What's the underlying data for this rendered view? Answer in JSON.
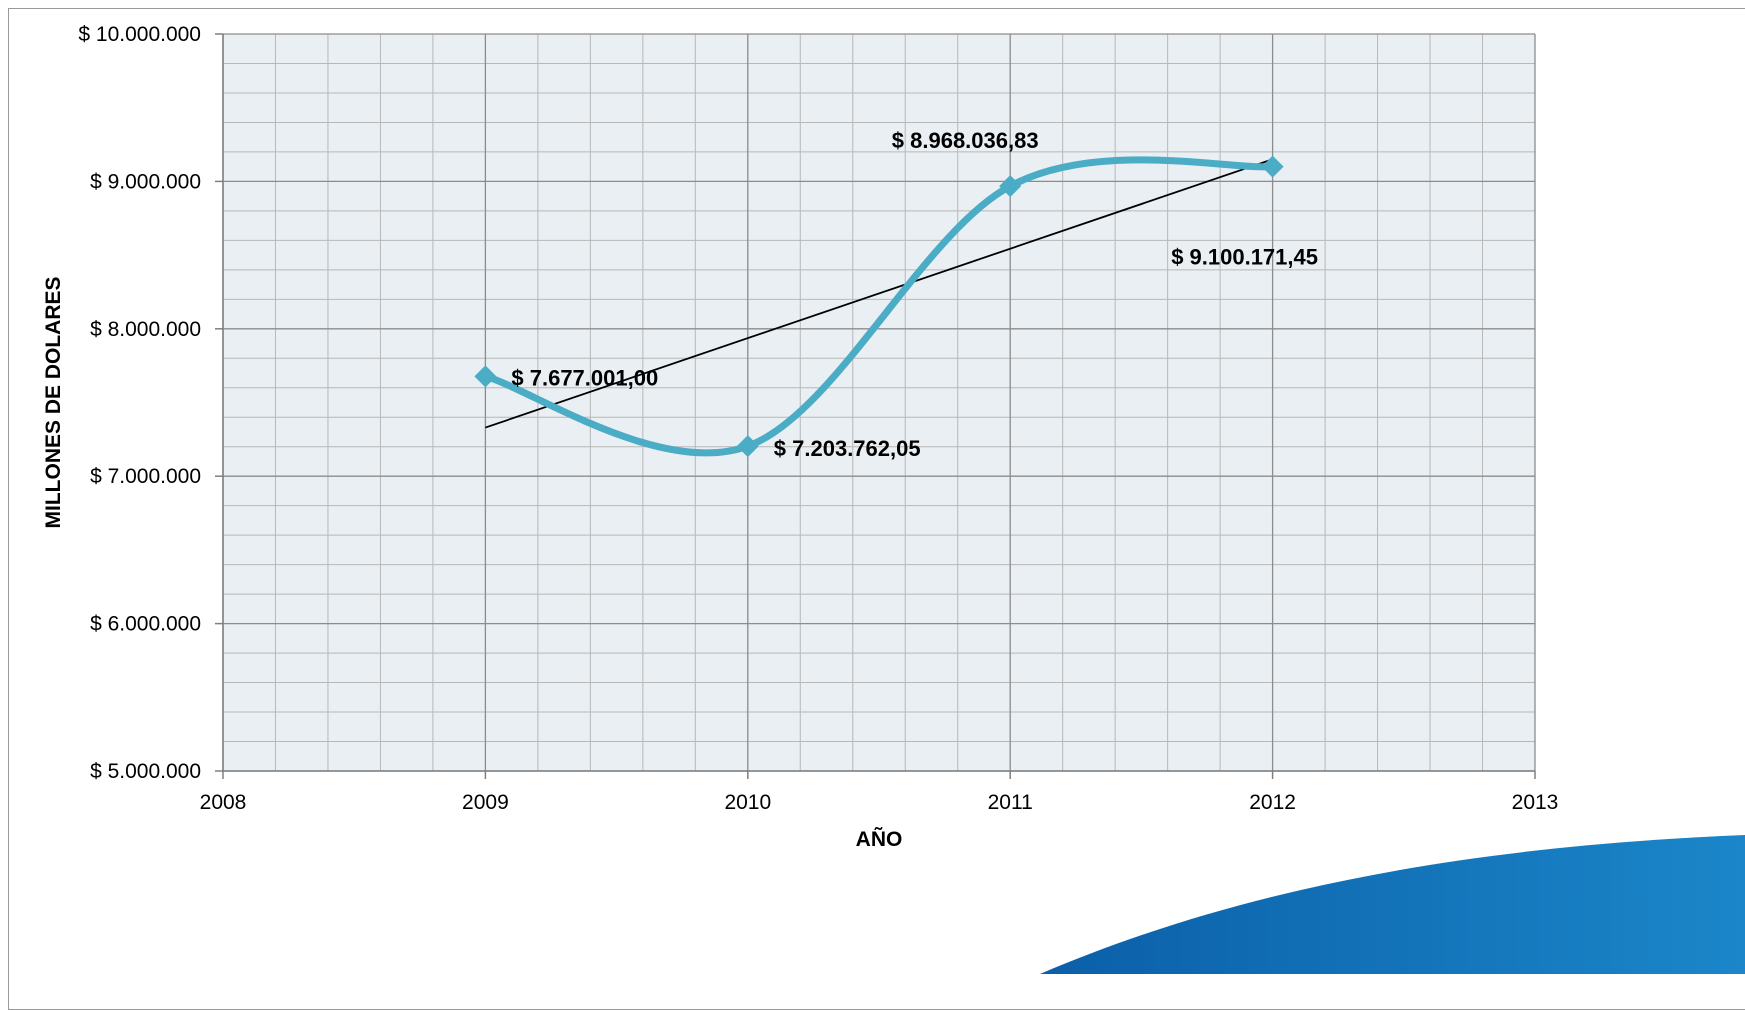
{
  "chart_data": {
    "type": "line",
    "title": "",
    "xlabel": "AÑO",
    "ylabel": "MILLONES DE DOLARES",
    "xlim": [
      2008,
      2013
    ],
    "ylim": [
      5000000,
      10000000
    ],
    "x_ticks": [
      2008,
      2009,
      2010,
      2011,
      2012,
      2013
    ],
    "x_tick_labels": [
      "2008",
      "2009",
      "2010",
      "2011",
      "2012",
      "2013"
    ],
    "y_ticks": [
      5000000,
      6000000,
      7000000,
      8000000,
      9000000,
      10000000
    ],
    "y_tick_labels": [
      "$ 5.000.000",
      "$ 6.000.000",
      "$ 7.000.000",
      "$ 8.000.000",
      "$ 9.000.000",
      "$ 10.000.000"
    ],
    "grid": true,
    "smooth": true,
    "series": [
      {
        "x": [
          2009,
          2010,
          2011,
          2012
        ],
        "y": [
          7677001.0,
          7203762.05,
          8968036.83,
          9100171.45
        ],
        "data_labels": [
          "$ 7.677.001,00",
          "$ 7.203.762,05",
          "$ 8.968.036,83",
          "$ 9.100.171,45"
        ],
        "color": "#4bacc6",
        "marker": "diamond"
      }
    ],
    "trendline": {
      "type": "linear",
      "x": [
        2009,
        2012
      ],
      "y": [
        7330000,
        9150000
      ],
      "color": "#000000"
    },
    "plot_background": "#e9eff3",
    "grid_major_color": "#8c8c8c",
    "grid_minor_color": "#b8b8b8"
  }
}
